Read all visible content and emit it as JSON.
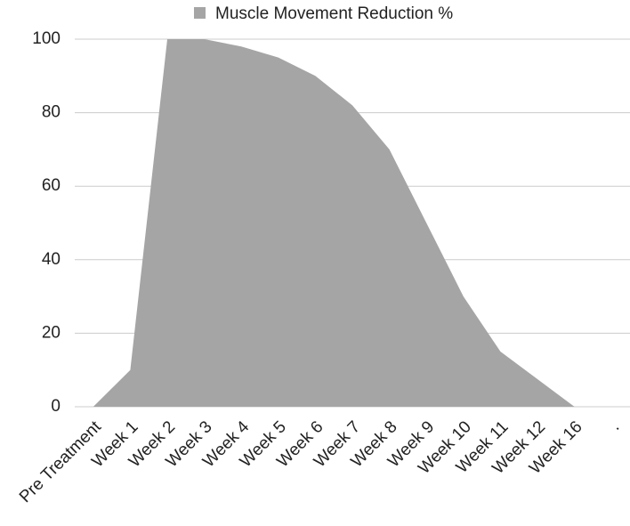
{
  "chart_data": {
    "type": "area",
    "categories": [
      "Pre Treatment",
      "Week 1",
      "Week 2",
      "Week 3",
      "Week 4",
      "Week 5",
      "Week 6",
      "Week 7",
      "Week 8",
      "Week 9",
      "Week 10",
      "Week 11",
      "Week 12",
      "Week 16",
      "."
    ],
    "series": [
      {
        "name": "Muscle Movement Reduction %",
        "color": "#a5a5a5",
        "values": [
          0,
          10,
          100,
          100,
          98,
          95,
          90,
          82,
          70,
          50,
          30,
          15,
          7.5,
          0,
          0
        ]
      }
    ],
    "ylim": [
      0,
      100
    ],
    "yticks": [
      0,
      20,
      40,
      60,
      80,
      100
    ],
    "grid": true,
    "legend": "top"
  }
}
